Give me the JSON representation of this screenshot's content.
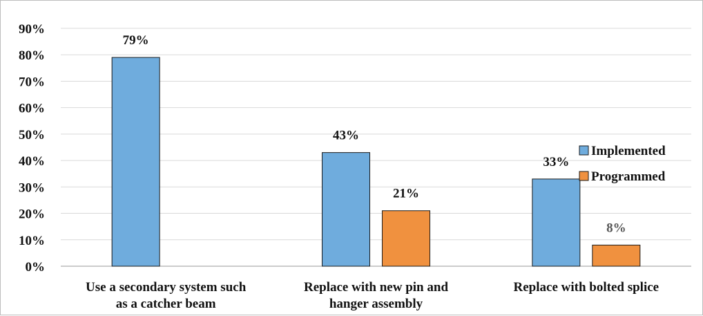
{
  "chart_data": {
    "type": "bar",
    "categories": [
      [
        "Use a secondary system such",
        "as a catcher beam"
      ],
      [
        "Replace with new pin and",
        "hanger assembly"
      ],
      [
        "Replace with bolted splice"
      ]
    ],
    "series": [
      {
        "name": "Implemented",
        "color": "#6FACDD",
        "values": [
          79,
          43,
          33
        ],
        "labels": [
          "79%",
          "43%",
          "33%"
        ]
      },
      {
        "name": "Programmed",
        "color": "#F0913F",
        "values": [
          null,
          21,
          8
        ],
        "labels": [
          null,
          "21%",
          "8%"
        ]
      }
    ],
    "y_ticks": [
      "0%",
      "10%",
      "20%",
      "30%",
      "40%",
      "50%",
      "60%",
      "70%",
      "80%",
      "90%"
    ],
    "ylim": [
      0,
      90
    ],
    "grid": true,
    "legend_position": "right"
  }
}
